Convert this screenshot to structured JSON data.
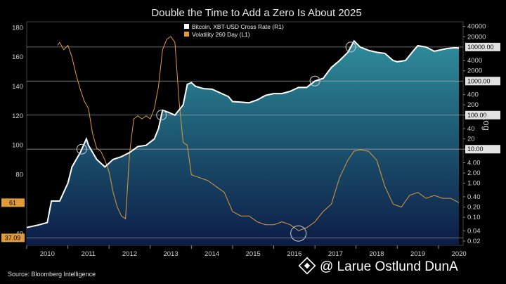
{
  "chart_data": {
    "type": "line",
    "title": "Double the Time to Add a Zero Is About 2025",
    "source": "Source: Bloomberg Intelligence",
    "right_axis_label": "Log",
    "watermark": "@ Larue Ostlund DunA",
    "legend": [
      {
        "name": "Bitcoin, XBT-USD Cross Rate  (R1)",
        "color": "#ffffff"
      },
      {
        "name": "Volatility 260 Day (L1)",
        "color": "#e09a3a"
      }
    ],
    "x_ticks": [
      "2010",
      "2011",
      "2012",
      "2013",
      "2014",
      "2015",
      "2016",
      "2017",
      "2018",
      "2019",
      "2020"
    ],
    "left_ticks": [
      40,
      60,
      80,
      100,
      120,
      140,
      160,
      180
    ],
    "ylim_left": [
      32,
      184
    ],
    "right_ticks": [
      "0.02",
      "0.04",
      "0.10",
      "0.20",
      "0.40",
      "1.00",
      "2.00",
      "4.00",
      "10",
      "20",
      "40",
      "100",
      "200",
      "400",
      "2000",
      "4000",
      "20000",
      "40000"
    ],
    "right_boxed": [
      "10.00",
      "100.00",
      "1000.00",
      "10000.00"
    ],
    "ylim_right_log": [
      0.015,
      55000
    ],
    "left_value_boxes": [
      {
        "label": "61",
        "value": 61,
        "color": "#e09a3a"
      },
      {
        "label": "37.09",
        "value": 37.09,
        "color": "#e09a3a"
      }
    ],
    "highlight_lines": [
      {
        "label": "Bitcoin",
        "value": 10000,
        "axis": "right"
      },
      {
        "label": "Bitcoin",
        "value": 1000,
        "axis": "right"
      },
      {
        "label": "Bitcoin",
        "value": 100,
        "axis": "right"
      },
      {
        "label": "Bitcoin",
        "value": 10,
        "axis": "right"
      },
      {
        "label": "Volatility",
        "value": 37.09,
        "axis": "left"
      }
    ],
    "series": [
      {
        "name": "Bitcoin, XBT-USD Cross Rate  (R1)",
        "axis": "right",
        "color": "#ffffff",
        "x": [
          2010.0,
          2010.3,
          2010.5,
          2010.6,
          2010.8,
          2011.0,
          2011.1,
          2011.3,
          2011.45,
          2011.5,
          2011.7,
          2011.9,
          2012.1,
          2012.3,
          2012.5,
          2012.7,
          2012.9,
          2013.1,
          2013.2,
          2013.3,
          2013.45,
          2013.6,
          2013.8,
          2013.9,
          2014.0,
          2014.1,
          2014.3,
          2014.5,
          2014.7,
          2014.9,
          2015.0,
          2015.2,
          2015.4,
          2015.6,
          2015.8,
          2016.0,
          2016.2,
          2016.4,
          2016.6,
          2016.8,
          2017.0,
          2017.2,
          2017.4,
          2017.6,
          2017.8,
          2017.95,
          2018.1,
          2018.3,
          2018.5,
          2018.7,
          2018.9,
          2019.0,
          2019.2,
          2019.4,
          2019.5,
          2019.7,
          2019.9,
          2020.0,
          2020.2,
          2020.4,
          2020.5
        ],
        "values": [
          0.05,
          0.06,
          0.07,
          0.3,
          0.3,
          1.0,
          3.0,
          8.0,
          20.0,
          13.0,
          5.0,
          3.0,
          5.0,
          6.0,
          8.0,
          12.0,
          13.0,
          20.0,
          40.0,
          140.0,
          120.0,
          100.0,
          200.0,
          800.0,
          900.0,
          700.0,
          600.0,
          580.0,
          450.0,
          350.0,
          250.0,
          240.0,
          230.0,
          280.0,
          380.0,
          430.0,
          430.0,
          500.0,
          650.0,
          650.0,
          1000.0,
          1200.0,
          2500.0,
          4000.0,
          7000.0,
          15000.0,
          10000.0,
          8000.0,
          7000.0,
          6500.0,
          4000.0,
          3700.0,
          4000.0,
          8000.0,
          11000.0,
          10000.0,
          7500.0,
          8000.0,
          9000.0,
          9500.0,
          9300.0
        ]
      },
      {
        "name": "Volatility 260 Day (L1)",
        "axis": "left",
        "color": "#e09a3a",
        "x": [
          2010.75,
          2010.8,
          2010.9,
          2011.0,
          2011.1,
          2011.2,
          2011.3,
          2011.4,
          2011.5,
          2011.6,
          2011.7,
          2011.8,
          2011.9,
          2012.0,
          2012.1,
          2012.2,
          2012.3,
          2012.4,
          2012.5,
          2012.6,
          2012.7,
          2012.8,
          2012.9,
          2013.0,
          2013.1,
          2013.2,
          2013.3,
          2013.4,
          2013.5,
          2013.6,
          2013.7,
          2013.8,
          2013.9,
          2014.0,
          2014.2,
          2014.4,
          2014.6,
          2014.8,
          2015.0,
          2015.2,
          2015.4,
          2015.6,
          2015.8,
          2016.0,
          2016.2,
          2016.4,
          2016.5,
          2016.6,
          2016.8,
          2017.0,
          2017.2,
          2017.4,
          2017.6,
          2017.8,
          2017.95,
          2018.1,
          2018.3,
          2018.5,
          2018.7,
          2018.9,
          2019.1,
          2019.3,
          2019.5,
          2019.7,
          2019.9,
          2020.1,
          2020.3,
          2020.5
        ],
        "values": [
          168,
          170,
          165,
          168,
          160,
          148,
          138,
          130,
          125,
          108,
          98,
          96,
          90,
          82,
          68,
          58,
          52,
          50,
          95,
          118,
          120,
          118,
          120,
          118,
          125,
          140,
          165,
          172,
          174,
          170,
          130,
          102,
          100,
          80,
          78,
          76,
          72,
          68,
          55,
          52,
          52,
          48,
          46,
          46,
          48,
          46,
          44,
          42,
          44,
          48,
          55,
          60,
          78,
          90,
          96,
          97,
          96,
          90,
          72,
          60,
          58,
          66,
          68,
          64,
          66,
          64,
          64,
          61
        ]
      }
    ]
  }
}
